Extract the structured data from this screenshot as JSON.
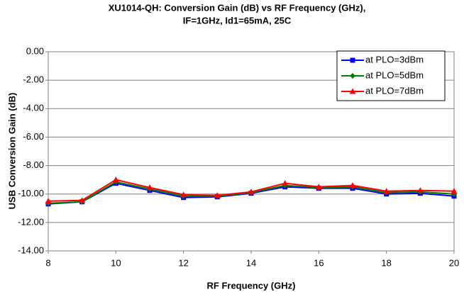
{
  "chart_data": {
    "type": "line",
    "title": [
      "XU1014-QH: Conversion Gain (dB) vs RF Frequency (GHz),",
      "IF=1GHz, Id1=65mA, 25C"
    ],
    "xlabel": "RF Frequency (GHz)",
    "ylabel": "USB Conversion Gain (dB)",
    "x": [
      8,
      9,
      10,
      11,
      12,
      13,
      14,
      15,
      16,
      17,
      18,
      19,
      20
    ],
    "series": [
      {
        "name": "at PLO=3dBm",
        "color": "#0000ff",
        "marker": "square",
        "values": [
          -10.7,
          -10.55,
          -9.25,
          -9.75,
          -10.25,
          -10.2,
          -9.95,
          -9.5,
          -9.6,
          -9.6,
          -10.0,
          -9.95,
          -10.15
        ]
      },
      {
        "name": "at PLO=5dBm",
        "color": "#008000",
        "marker": "diamond",
        "values": [
          -10.65,
          -10.55,
          -9.15,
          -9.65,
          -10.15,
          -10.15,
          -9.9,
          -9.4,
          -9.55,
          -9.5,
          -9.9,
          -9.85,
          -10.0
        ]
      },
      {
        "name": "at PLO=7dBm",
        "color": "#ff0000",
        "marker": "triangle",
        "values": [
          -10.5,
          -10.45,
          -9.0,
          -9.55,
          -10.05,
          -10.1,
          -9.85,
          -9.25,
          -9.5,
          -9.4,
          -9.8,
          -9.75,
          -9.8
        ]
      }
    ],
    "xlim": [
      8,
      20
    ],
    "xticks": [
      8,
      10,
      12,
      14,
      16,
      18,
      20
    ],
    "ylim": [
      -14,
      0
    ],
    "yticks": [
      {
        "value": -14,
        "label": "-14.00"
      },
      {
        "value": -12,
        "label": "-12.00"
      },
      {
        "value": -10,
        "label": "-10.00"
      },
      {
        "value": -8,
        "label": "-8.00"
      },
      {
        "value": -6,
        "label": "-6.00"
      },
      {
        "value": -4,
        "label": "-4.00"
      },
      {
        "value": -2,
        "label": "-2.00"
      },
      {
        "value": 0,
        "label": "0.00"
      }
    ],
    "grid": true,
    "legend": "upper right"
  }
}
